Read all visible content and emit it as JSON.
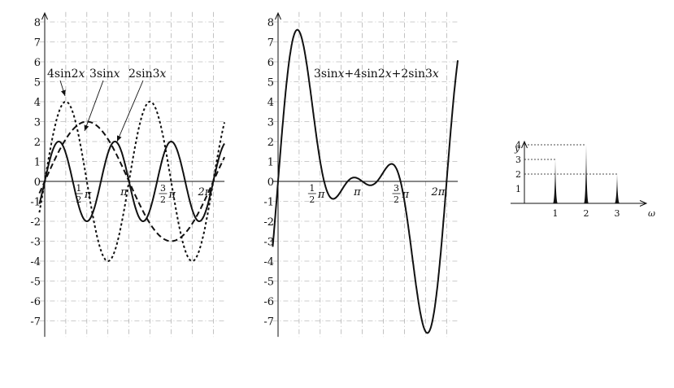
{
  "chart_data": [
    {
      "type": "line",
      "title": "",
      "xlabel": "",
      "ylabel": "",
      "x_range": [
        -0.2,
        6.7
      ],
      "ylim": [
        -7.8,
        8.5
      ],
      "y_ticks": [
        "8",
        "7",
        "6",
        "5",
        "4",
        "3",
        "2",
        "1",
        "0",
        "-1",
        "-2",
        "-3",
        "-4",
        "-5",
        "-6",
        "-7"
      ],
      "x_ticks": [
        {
          "num": "1",
          "den": "2",
          "suffix": "π",
          "value": 1.5708
        },
        {
          "num": "",
          "den": "",
          "suffix": "π",
          "value": 3.1416
        },
        {
          "num": "3",
          "den": "2",
          "suffix": "π",
          "value": 4.7124
        },
        {
          "num": "",
          "den": "",
          "suffix": "2π",
          "value": 6.2832
        }
      ],
      "grid": true,
      "series": [
        {
          "name": "4sin2x",
          "formula": "4*sin(2x)",
          "amplitude": 4,
          "frequency": 2,
          "style": "dotted"
        },
        {
          "name": "3sinx",
          "formula": "3*sin(x)",
          "amplitude": 3,
          "frequency": 1,
          "style": "dashed"
        },
        {
          "name": "2sin3x",
          "formula": "2*sin(3x)",
          "amplitude": 2,
          "frequency": 3,
          "style": "solid"
        }
      ],
      "annotations": [
        "4sin2x",
        "3sinx",
        "2sin3x"
      ]
    },
    {
      "type": "line",
      "title": "",
      "xlabel": "",
      "ylabel": "",
      "x_range": [
        -0.2,
        6.7
      ],
      "ylim": [
        -7.8,
        8.5
      ],
      "y_ticks": [
        "8",
        "7",
        "6",
        "5",
        "4",
        "3",
        "2",
        "1",
        "0",
        "-1",
        "-2",
        "-3",
        "-4",
        "-5",
        "-6",
        "-7"
      ],
      "x_ticks": [
        {
          "num": "1",
          "den": "2",
          "suffix": "π",
          "value": 1.5708
        },
        {
          "num": "",
          "den": "",
          "suffix": "π",
          "value": 3.1416
        },
        {
          "num": "3",
          "den": "2",
          "suffix": "π",
          "value": 4.7124
        },
        {
          "num": "",
          "den": "",
          "suffix": "2π",
          "value": 6.2832
        }
      ],
      "grid": true,
      "series": [
        {
          "name": "3sinx+4sin2x+2sin3x",
          "formula": "3*sin(x)+4*sin(2x)+2*sin(3x)",
          "style": "solid"
        }
      ],
      "annotations": [
        "3sinx+4sin2x+2sin3x"
      ]
    },
    {
      "type": "bar",
      "title": "",
      "xlabel": "ω",
      "ylabel": "y",
      "categories": [
        "1",
        "2",
        "3"
      ],
      "values": [
        3,
        4,
        2
      ],
      "y_ticks": [
        "4",
        "3",
        "2",
        "1"
      ],
      "ylim": [
        0,
        4.8
      ],
      "grid": false
    }
  ],
  "colors": {
    "line": "#111111",
    "grid": "#9a9a9a",
    "background": "#ffffff"
  }
}
